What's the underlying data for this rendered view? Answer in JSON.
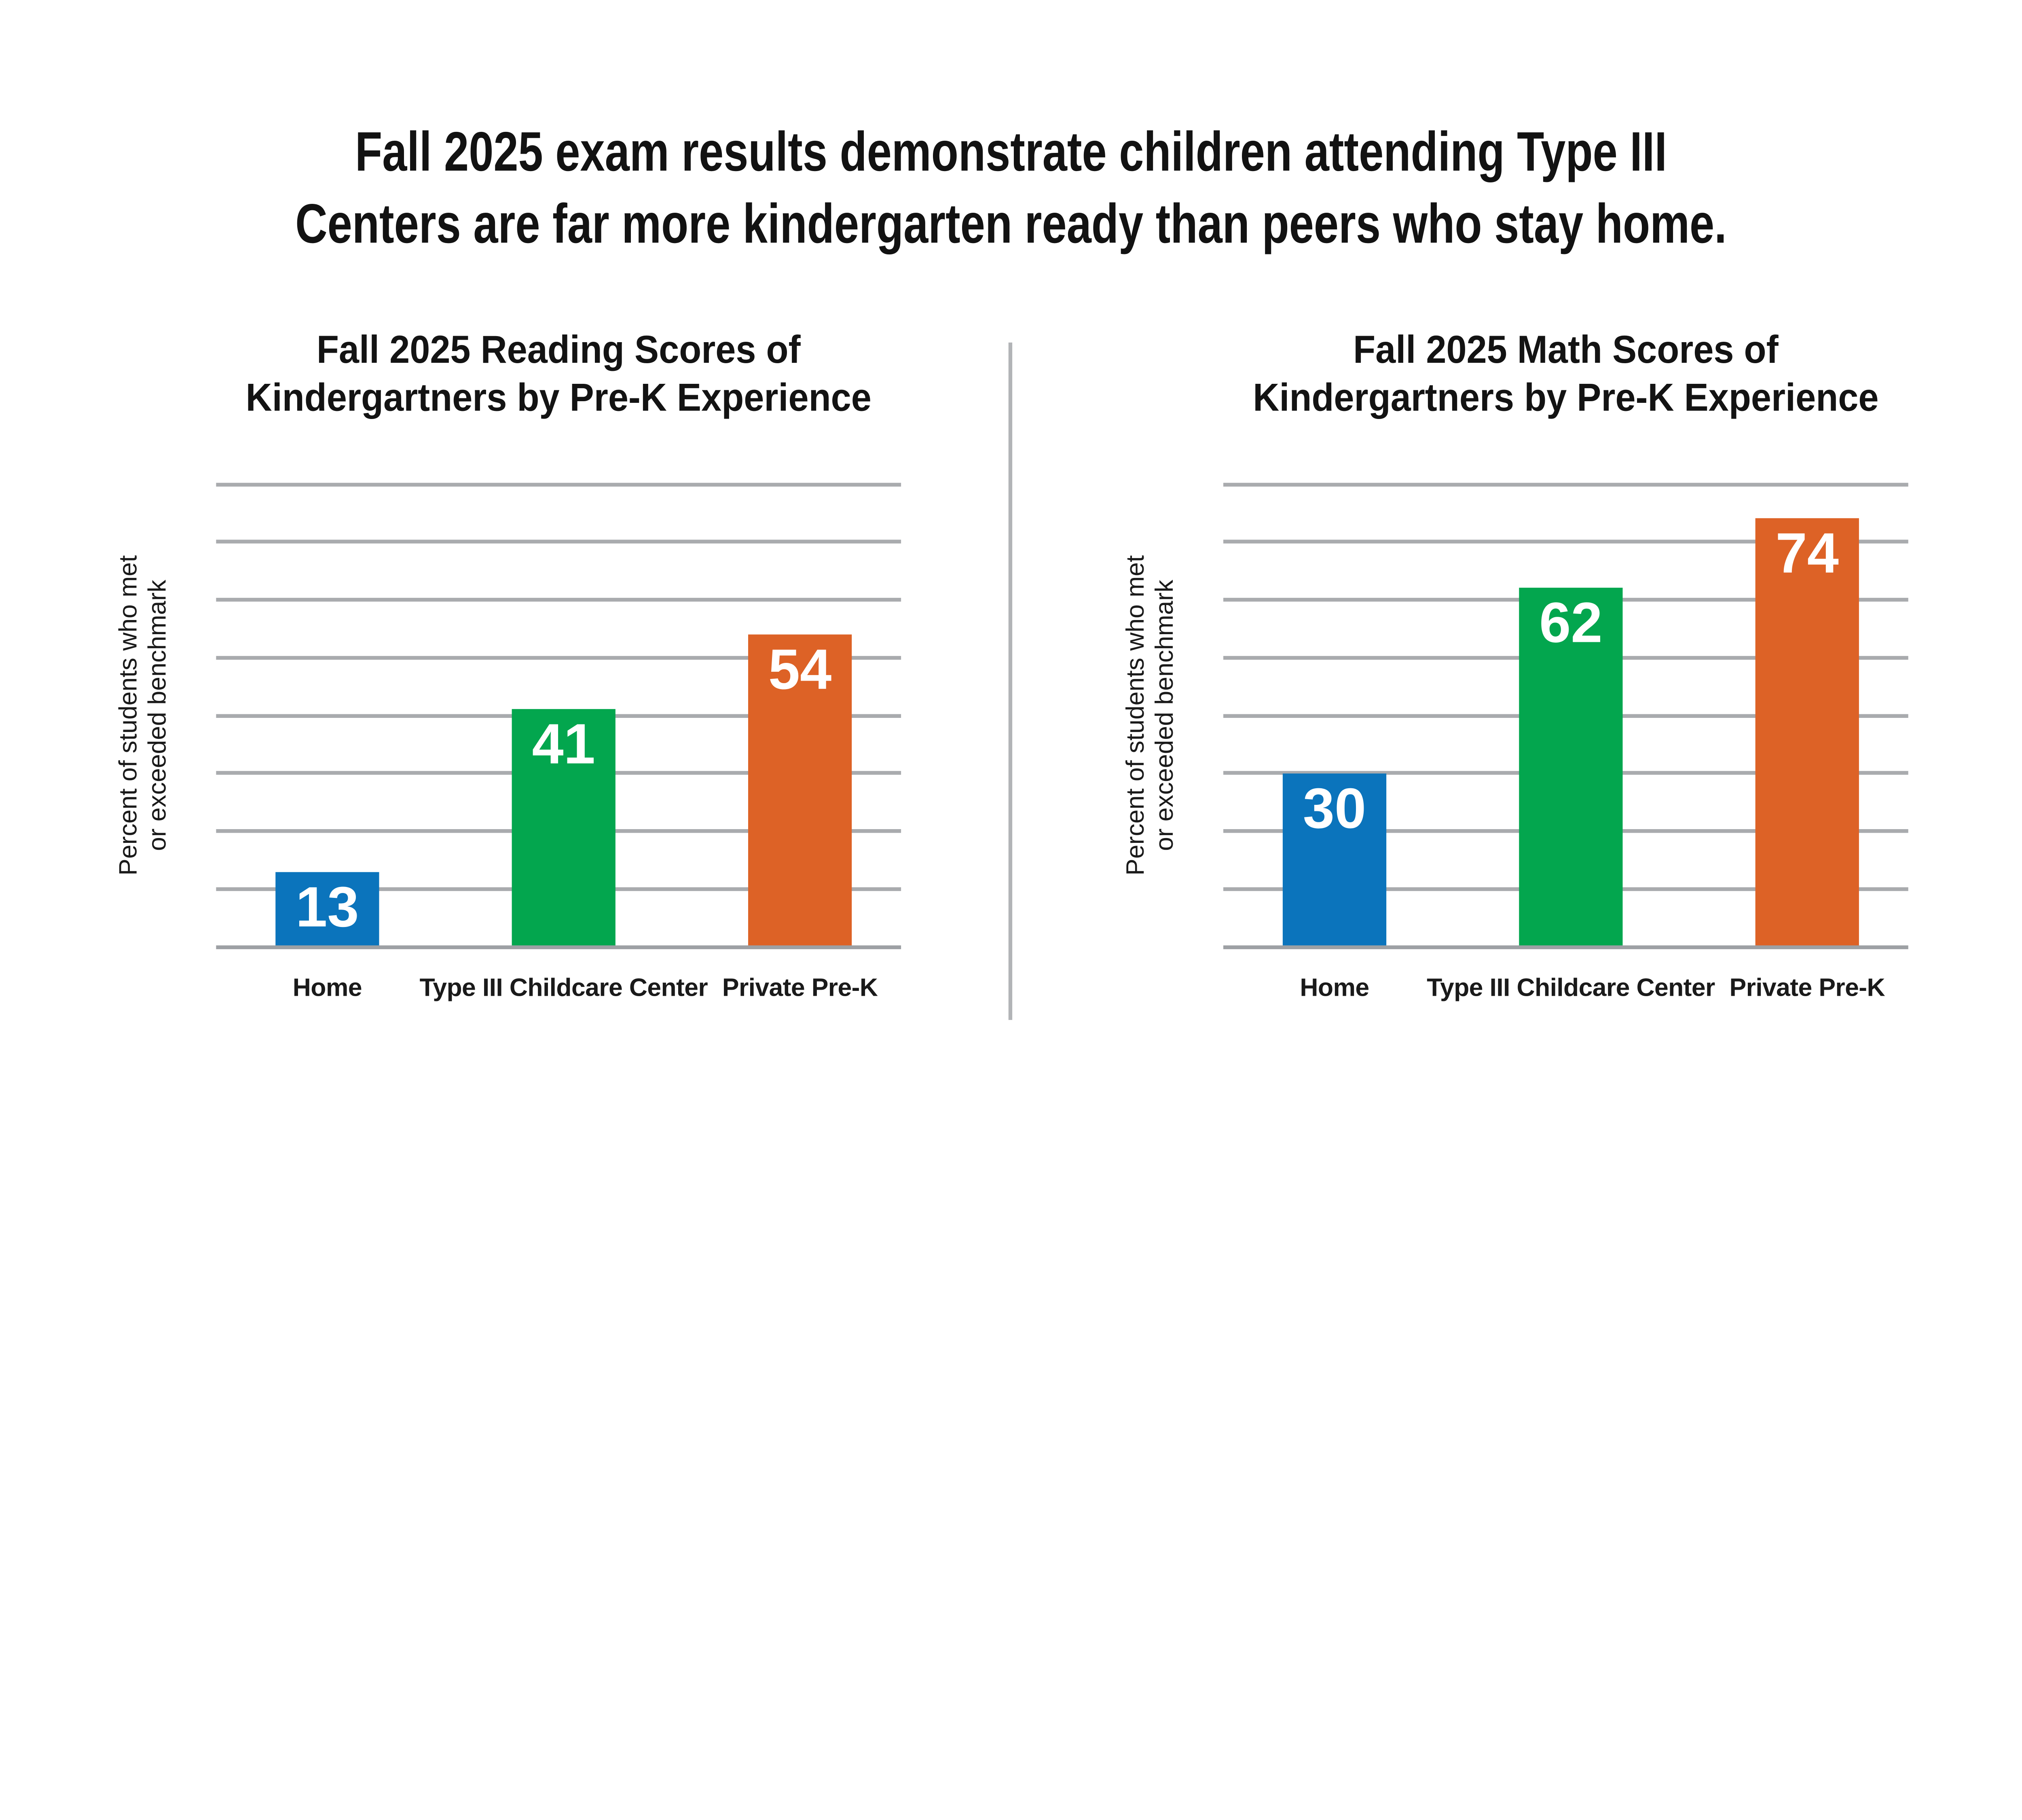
{
  "main_title": {
    "line1": "Fall 2025 exam results demonstrate children attending Type III",
    "line2": "Centers are far more kindergarten ready than peers who stay home."
  },
  "style": {
    "background": "#ffffff",
    "title_color": "#121212",
    "label_color": "#1a1a1a",
    "value_label_color": "#ffffff",
    "gridline_color": "#a9abae",
    "axis_color": "#9da0a4",
    "divider_color": "#b2b4b7",
    "bar_colors": [
      "#0b74bc",
      "#03a64e",
      "#dd6226"
    ]
  },
  "chart_data": [
    {
      "type": "bar",
      "title": "Fall 2025 Reading Scores of Kindergartners by Pre-K Experience",
      "title_line1": "Fall 2025 Reading Scores of",
      "title_line2": "Kindergartners by Pre-K Experience",
      "ylabel": "Percent of students who met or exceeded benchmark",
      "ylabel_line1": "Percent of students who met",
      "ylabel_line2": "or exceeded benchmark",
      "xlabel": "",
      "categories": [
        "Home",
        "Type III Childcare Center",
        "Private Pre-K"
      ],
      "values": [
        13,
        41,
        54
      ],
      "bar_colors": [
        "#0b74bc",
        "#03a64e",
        "#dd6226"
      ],
      "ylim": [
        0,
        80
      ],
      "gridline_step": 10,
      "grid": "horizontal",
      "y_tick_labels": "none",
      "legend": "none",
      "value_labels": "inside top of bars, white bold"
    },
    {
      "type": "bar",
      "title": "Fall 2025 Math Scores of Kindergartners by Pre-K Experience",
      "title_line1": "Fall 2025 Math Scores of",
      "title_line2": "Kindergartners by Pre-K Experience",
      "ylabel": "Percent of students who met or exceeded benchmark",
      "ylabel_line1": "Percent of students who met",
      "ylabel_line2": "or exceeded benchmark",
      "xlabel": "",
      "categories": [
        "Home",
        "Type III Childcare Center",
        "Private Pre-K"
      ],
      "values": [
        30,
        62,
        74
      ],
      "bar_colors": [
        "#0b74bc",
        "#03a64e",
        "#dd6226"
      ],
      "ylim": [
        0,
        80
      ],
      "gridline_step": 10,
      "grid": "horizontal",
      "y_tick_labels": "none",
      "legend": "none",
      "value_labels": "inside top of bars, white bold"
    }
  ]
}
